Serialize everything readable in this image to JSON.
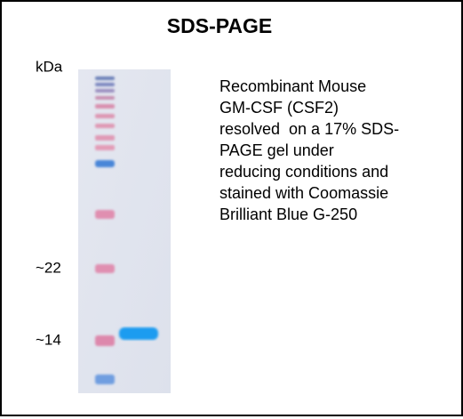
{
  "title": "SDS-PAGE",
  "unit_label": "kDa",
  "markers": [
    "~22",
    "~14"
  ],
  "description": [
    "Recombinant Mouse",
    "GM-CSF (CSF2)",
    "resolved  on a 17% SDS-",
    "PAGE gel under",
    "reducing conditions and",
    "stained with Coomassie",
    "Brilliant Blue G-250"
  ]
}
